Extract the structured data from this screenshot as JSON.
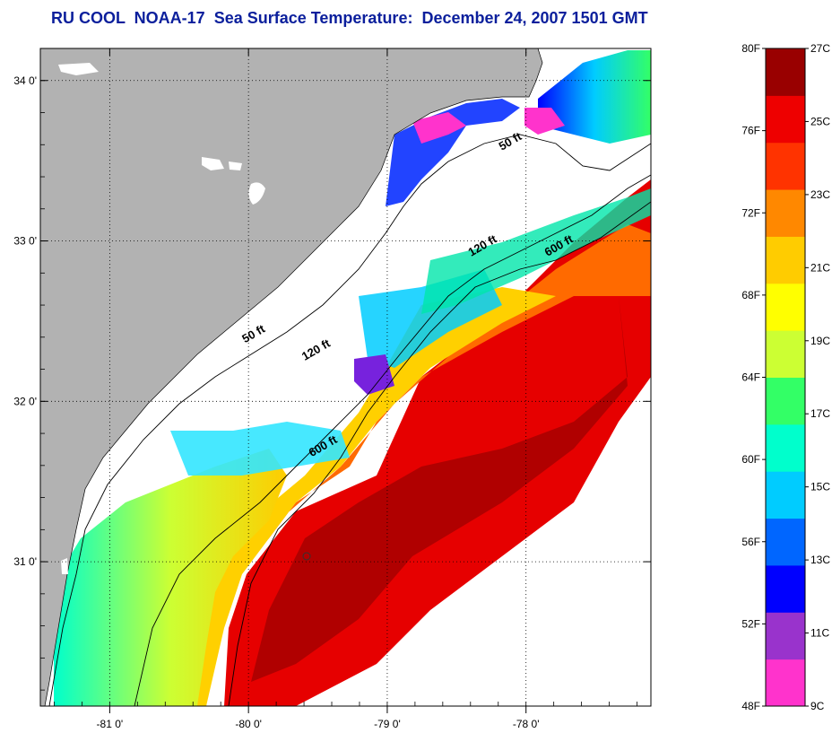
{
  "title": "RU COOL  NOAA-17  Sea Surface Temperature:  December 24, 2007 1501 GMT",
  "map": {
    "lon_range": [
      -81.5,
      -77.1
    ],
    "lat_range": [
      30.1,
      34.2
    ],
    "lon_ticks": [
      {
        "value": -81,
        "label": "-81 0'"
      },
      {
        "value": -80,
        "label": "-80 0'"
      },
      {
        "value": -79,
        "label": "-79 0'"
      },
      {
        "value": -78,
        "label": "-78 0'"
      }
    ],
    "lat_ticks": [
      {
        "value": 34,
        "label": "34 0'"
      },
      {
        "value": 33,
        "label": "33 0'"
      },
      {
        "value": 32,
        "label": "32 0'"
      },
      {
        "value": 31,
        "label": "31 0'"
      }
    ],
    "grid": "dotted",
    "land_color": "#b2b2b2",
    "cloud_color": "#ffffff",
    "contours": [
      {
        "label": "50 ft",
        "lon": -79.95,
        "lat": 32.4
      },
      {
        "label": "50 ft",
        "lon": -78.1,
        "lat": 33.6
      },
      {
        "label": "120 ft",
        "lon": -79.5,
        "lat": 32.3
      },
      {
        "label": "120 ft",
        "lon": -78.3,
        "lat": 32.95
      },
      {
        "label": "600 ft",
        "lon": -79.45,
        "lat": 31.7
      },
      {
        "label": "600 ft",
        "lon": -77.75,
        "lat": 32.95
      }
    ]
  },
  "color_scale": {
    "fahrenheit_labels": [
      "80F",
      "76F",
      "72F",
      "68F",
      "64F",
      "60F",
      "56F",
      "52F",
      "48F"
    ],
    "celsius_labels": [
      "27C",
      "25C",
      "23C",
      "21C",
      "19C",
      "17C",
      "15C",
      "13C",
      "11C",
      "9C"
    ],
    "colors": [
      "#ff33cc",
      "#9933cc",
      "#0000ff",
      "#0066ff",
      "#00ccff",
      "#00ffcc",
      "#33ff66",
      "#ccff33",
      "#ffff00",
      "#ffcc00",
      "#ff8800",
      "#ff3300",
      "#ee0000",
      "#990000"
    ],
    "range_f": [
      48,
      80.6
    ]
  }
}
